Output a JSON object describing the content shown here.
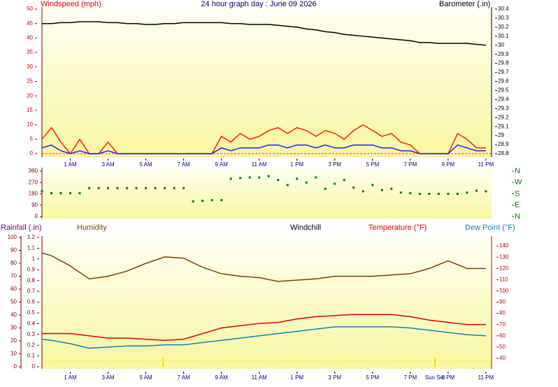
{
  "chart_data": [
    {
      "type": "line",
      "title": "24 hour graph day : June 09 2026",
      "y_label": "Windspeed (mph)",
      "y2_label": "Barometer (.in)",
      "x": [
        -0.5,
        0,
        0.5,
        1,
        1.5,
        2,
        2.5,
        3,
        3.5,
        4,
        4.5,
        5,
        5.5,
        6,
        6.5,
        7,
        7.5,
        8,
        8.5,
        9,
        9.5,
        10,
        10.5,
        11,
        11.5,
        12,
        12.5,
        13,
        13.5,
        14,
        14.5,
        15,
        15.5,
        16,
        16.5,
        17,
        17.5,
        18,
        18.5,
        19,
        19.5,
        20,
        20.5,
        21,
        21.5,
        22,
        22.5,
        23
      ],
      "xlim": [
        -0.5,
        23.3
      ],
      "xticks": [
        {
          "value": 1,
          "label": "1 AM"
        },
        {
          "value": 3,
          "label": "3 AM"
        },
        {
          "value": 5,
          "label": "5 AM"
        },
        {
          "value": 7,
          "label": "7 AM"
        },
        {
          "value": 9,
          "label": "9 AM"
        },
        {
          "value": 11,
          "label": "11 AM"
        },
        {
          "value": 13,
          "label": "1 PM"
        },
        {
          "value": 15,
          "label": "3 PM"
        },
        {
          "value": 17,
          "label": "5 PM"
        },
        {
          "value": 19,
          "label": "7 PM"
        },
        {
          "value": 21,
          "label": "9 PM"
        },
        {
          "value": 23,
          "label": "11 PM"
        }
      ],
      "ylim": [
        0,
        50
      ],
      "yticks": [
        0,
        5,
        10,
        15,
        20,
        25,
        30,
        35,
        40,
        45,
        50
      ],
      "y2lim": [
        28.8,
        30.4
      ],
      "y2ticks": [
        28.8,
        28.9,
        29,
        29.1,
        29.2,
        29.3,
        29.4,
        29.5,
        29.6,
        29.7,
        29.8,
        29.9,
        30,
        30.1,
        30.2,
        30.3,
        30.4
      ],
      "series": [
        {
          "color": "#000000",
          "axis": "y2",
          "values": [
            30.24,
            30.24,
            30.25,
            30.25,
            30.26,
            30.26,
            30.26,
            30.25,
            30.25,
            30.24,
            30.24,
            30.23,
            30.23,
            30.24,
            30.24,
            30.25,
            30.25,
            30.25,
            30.25,
            30.25,
            30.24,
            30.24,
            30.23,
            30.23,
            30.23,
            30.22,
            30.21,
            30.2,
            30.18,
            30.17,
            30.15,
            30.14,
            30.12,
            30.11,
            30.1,
            30.09,
            30.08,
            30.07,
            30.06,
            30.05,
            30.03,
            30.03,
            30.02,
            30.02,
            30.02,
            30.02,
            30.01,
            30
          ]
        },
        {
          "color": "#ff2000",
          "values": [
            5,
            9,
            4,
            0,
            5,
            0,
            0,
            4,
            0,
            0,
            0,
            0,
            0,
            0,
            0,
            0,
            0,
            0,
            0,
            6,
            4,
            7,
            5,
            6,
            8,
            9,
            7,
            9,
            8,
            6,
            8,
            7,
            5,
            8,
            10,
            8,
            6,
            7,
            4,
            3,
            0,
            0,
            0,
            0,
            7,
            5,
            2,
            2
          ]
        },
        {
          "color": "#2020ff",
          "values": [
            2,
            3,
            1,
            0,
            1,
            0,
            0,
            1,
            0,
            0,
            0,
            0,
            0,
            0,
            0,
            0,
            0,
            0,
            0,
            2,
            1,
            2,
            2,
            2,
            3,
            3,
            2,
            3,
            3,
            2,
            3,
            2,
            2,
            3,
            3,
            3,
            2,
            2,
            1,
            1,
            0,
            0,
            0,
            0,
            3,
            2,
            1,
            1
          ]
        }
      ]
    },
    {
      "type": "scatter",
      "x": [
        -0.5,
        0,
        0.5,
        1,
        1.5,
        2,
        2.5,
        3,
        3.5,
        4,
        4.5,
        5,
        5.5,
        6,
        6.5,
        7,
        7.5,
        8,
        8.5,
        9,
        9.5,
        10,
        10.5,
        11,
        11.5,
        12,
        12.5,
        13,
        13.5,
        14,
        14.5,
        15,
        15.5,
        16,
        16.5,
        17,
        17.5,
        18,
        18.5,
        19,
        19.5,
        20,
        20.5,
        21,
        21.5,
        22,
        22.5,
        23
      ],
      "xlim": [
        -0.5,
        23.3
      ],
      "ylim": [
        0,
        360
      ],
      "yticks": [
        0,
        90,
        180,
        270,
        360
      ],
      "y2lim": [
        0,
        360
      ],
      "y2ticks": [
        {
          "value": 360,
          "label": "N"
        },
        {
          "value": 270,
          "label": "W"
        },
        {
          "value": 180,
          "label": "S"
        },
        {
          "value": 90,
          "label": "E"
        },
        {
          "value": 0,
          "label": "N"
        }
      ],
      "color": "#008000",
      "values": [
        200,
        185,
        185,
        185,
        185,
        225,
        225,
        225,
        225,
        225,
        225,
        225,
        225,
        225,
        225,
        225,
        120,
        125,
        130,
        130,
        300,
        305,
        310,
        310,
        320,
        290,
        250,
        300,
        270,
        310,
        220,
        260,
        290,
        230,
        200,
        250,
        210,
        220,
        190,
        185,
        180,
        180,
        180,
        180,
        180,
        190,
        205,
        200
      ]
    },
    {
      "type": "line",
      "y_label": "Rainfall (.in)",
      "windchill_label": "Windchill",
      "x": [
        -0.5,
        0,
        1,
        2,
        3,
        4,
        5,
        6,
        7,
        8,
        9,
        10,
        11,
        12,
        13,
        14,
        15,
        16,
        17,
        18,
        19,
        20,
        21,
        22,
        23
      ],
      "xlim": [
        -0.5,
        23.3
      ],
      "xticks": [
        {
          "value": 1,
          "label": "1 AM"
        },
        {
          "value": 3,
          "label": "3 AM"
        },
        {
          "value": 5,
          "label": "5 AM"
        },
        {
          "value": 7,
          "label": "7 AM"
        },
        {
          "value": 9,
          "label": "9 AM"
        },
        {
          "value": 11,
          "label": "11 AM"
        },
        {
          "value": 13,
          "label": "1 PM"
        },
        {
          "value": 15,
          "label": "3 PM"
        },
        {
          "value": 17,
          "label": "5 PM"
        },
        {
          "value": 19,
          "label": "7 PM"
        },
        {
          "value": 21,
          "label": "9 PM"
        },
        {
          "value": 23,
          "label": "11 PM"
        }
      ],
      "ylim": [
        0,
        1.2
      ],
      "yticks": [
        0,
        0.1,
        0.2,
        0.3,
        0.4,
        0.5,
        0.6,
        0.7,
        0.8,
        0.9,
        1,
        1.1,
        1.2
      ],
      "y3lim": [
        0,
        100
      ],
      "y3ticks": [
        0,
        10,
        20,
        30,
        40,
        50,
        60,
        70,
        80,
        90,
        100
      ],
      "y2lim": [
        32.5,
        147.5
      ],
      "y2ticks": [
        40,
        50,
        60,
        70,
        80,
        90,
        100,
        110,
        120,
        130,
        140
      ],
      "sun_markers": [
        5.9,
        20.3
      ],
      "sun_label": "Sun Set",
      "series": [
        {
          "name": "Humidity",
          "color": "#804000",
          "axis": "y3",
          "values": [
            88,
            86,
            78,
            68,
            70,
            74,
            80,
            85,
            84,
            77,
            72,
            70,
            69,
            66,
            67,
            68,
            70,
            70,
            70,
            71,
            72,
            76,
            82,
            76,
            76
          ]
        },
        {
          "name": "Temperature (°F)",
          "color": "#e00000",
          "axis": "y2",
          "values": [
            62,
            62,
            62,
            60,
            58,
            58,
            57,
            56,
            57,
            62,
            67,
            69,
            71,
            72,
            75,
            77,
            78,
            79,
            79,
            79,
            77,
            74,
            72,
            70,
            70
          ]
        },
        {
          "name": "Dew Point (°F)",
          "color": "#1080c0",
          "axis": "y2",
          "values": [
            57,
            56,
            53,
            49,
            50,
            51,
            51,
            52,
            52,
            54,
            56,
            58,
            60,
            62,
            64,
            66,
            68,
            68,
            68,
            68,
            67,
            65,
            63,
            61,
            60
          ]
        }
      ]
    }
  ]
}
